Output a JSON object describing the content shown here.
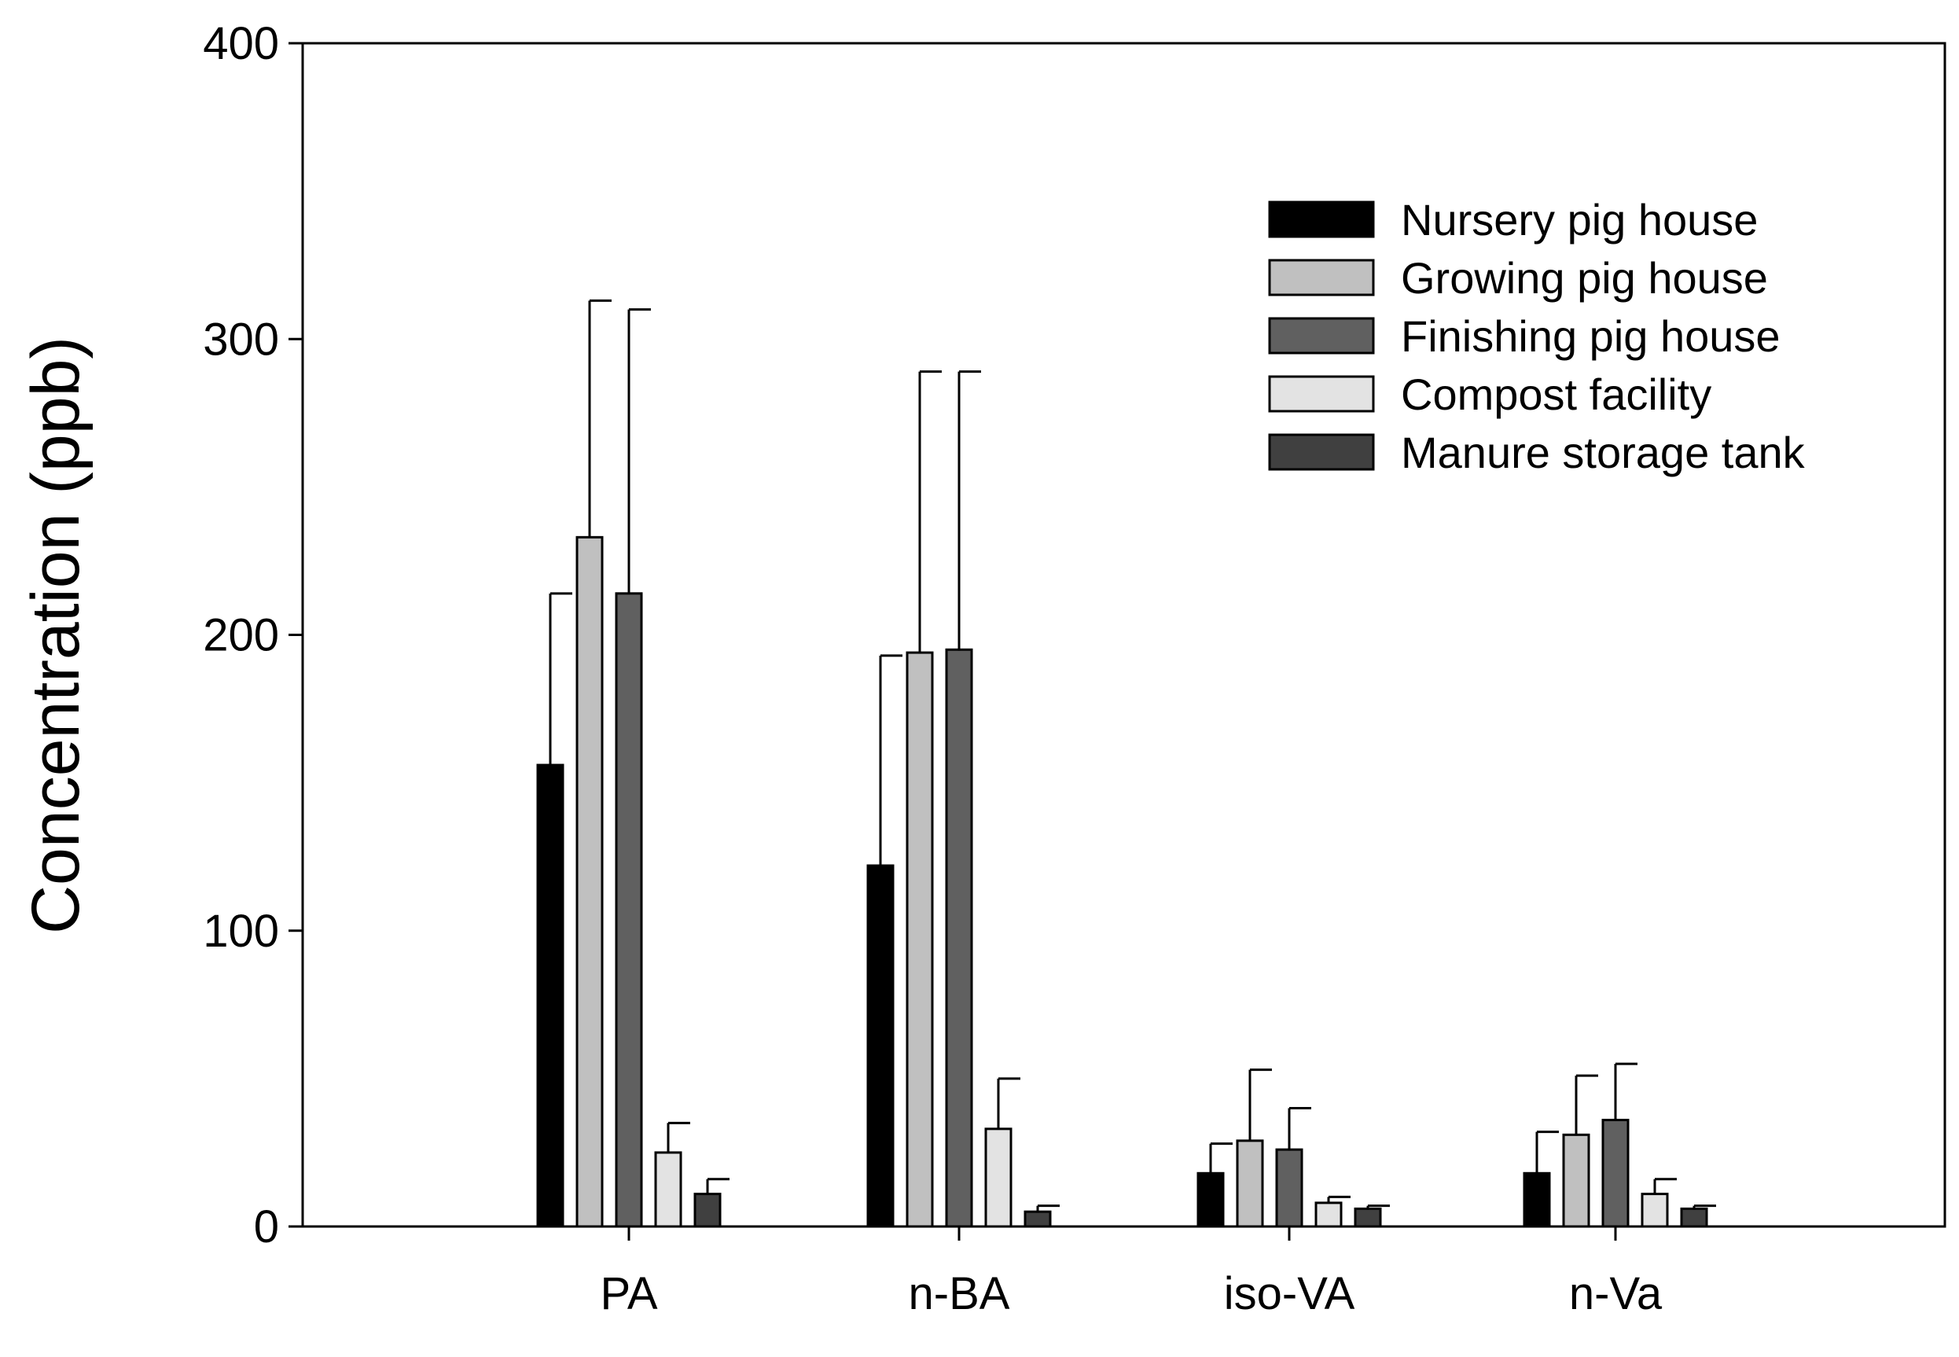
{
  "chart_data": {
    "type": "bar",
    "title": "",
    "xlabel": "",
    "ylabel": "Concentration (ppb)",
    "ylim": [
      0,
      400
    ],
    "yticks": [
      "0",
      "100",
      "200",
      "300",
      "400"
    ],
    "categories": [
      "PA",
      "n-BA",
      "iso-VA",
      "n-Va"
    ],
    "legend_position": "top-right",
    "error_bars": "upper",
    "series": [
      {
        "name": "Nursery pig house",
        "color": "#000000",
        "values": [
          156,
          122,
          18,
          18
        ],
        "errors": [
          58,
          71,
          10,
          14
        ]
      },
      {
        "name": "Growing pig house",
        "color": "#c0c0c0",
        "values": [
          233,
          194,
          29,
          31
        ],
        "errors": [
          80,
          95,
          24,
          20
        ]
      },
      {
        "name": "Finishing pig house",
        "color": "#606060",
        "values": [
          214,
          195,
          26,
          36
        ],
        "errors": [
          96,
          94,
          14,
          19
        ]
      },
      {
        "name": "Compost facility",
        "color": "#e3e3e3",
        "values": [
          25,
          33,
          8,
          11
        ],
        "errors": [
          10,
          17,
          2,
          5
        ]
      },
      {
        "name": "Manure storage tank",
        "color": "#404040",
        "values": [
          11,
          5,
          6,
          6
        ],
        "errors": [
          5,
          2,
          1,
          1
        ]
      }
    ]
  }
}
